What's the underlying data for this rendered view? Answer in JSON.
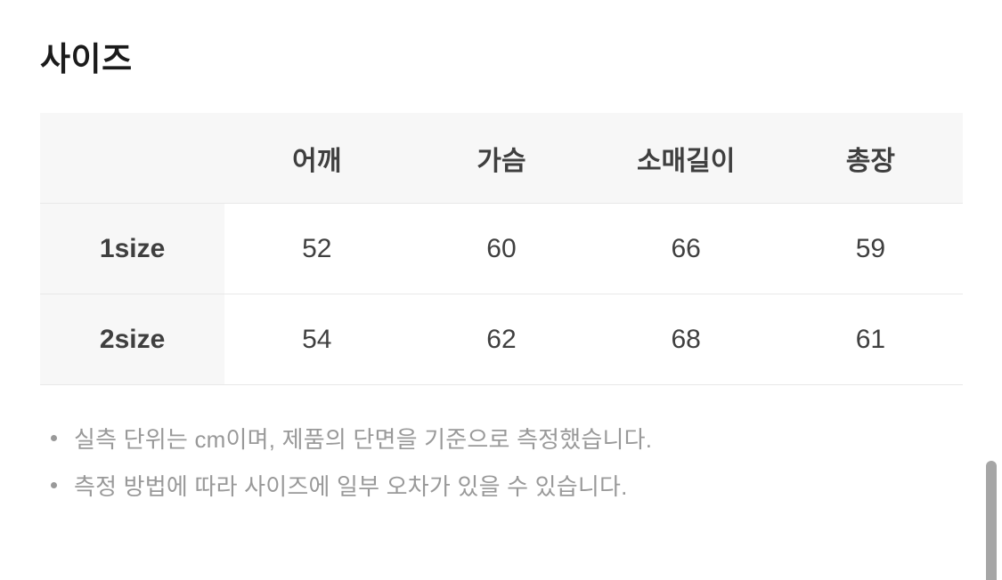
{
  "page": {
    "title": "사이즈"
  },
  "size_table": {
    "columns": [
      "",
      "어깨",
      "가슴",
      "소매길이",
      "총장"
    ],
    "rows": [
      {
        "label": "1size",
        "values": [
          "52",
          "60",
          "66",
          "59"
        ]
      },
      {
        "label": "2size",
        "values": [
          "54",
          "62",
          "68",
          "61"
        ]
      }
    ]
  },
  "notes": {
    "items": [
      "실측 단위는 cm이며, 제품의 단면을 기준으로 측정했습니다.",
      "측정 방법에 따라 사이즈에 일부 오차가 있을 수 있습니다."
    ]
  },
  "colors": {
    "page_bg": "#ffffff",
    "header_bg": "#f7f7f7",
    "border": "#e8e8e8",
    "title_text": "#1b1b1b",
    "table_text": "#3f3f3f",
    "note_text": "#999999",
    "scrollbar_thumb": "#a6a6a6"
  }
}
